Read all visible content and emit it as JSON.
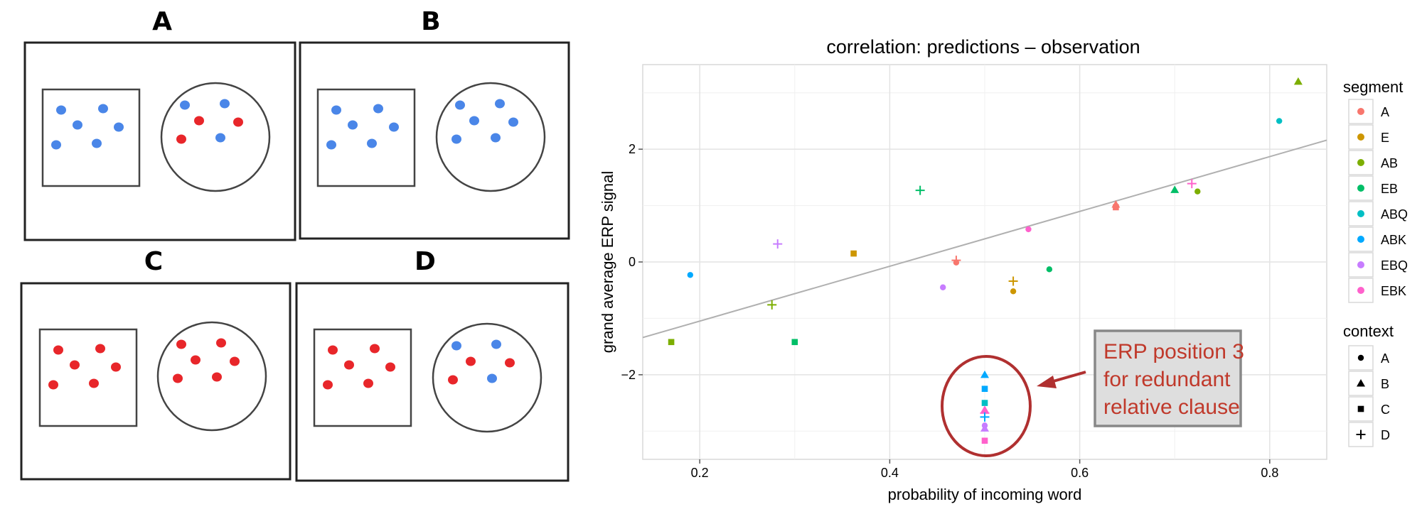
{
  "panels": [
    {
      "label": "A",
      "square_dots": [
        "blue",
        "blue",
        "blue",
        "blue",
        "blue",
        "blue"
      ],
      "circle_dots": [
        "blue",
        "blue",
        "red",
        "red",
        "red",
        "blue"
      ]
    },
    {
      "label": "B",
      "square_dots": [
        "blue",
        "blue",
        "blue",
        "blue",
        "blue",
        "blue"
      ],
      "circle_dots": [
        "blue",
        "blue",
        "blue",
        "blue",
        "blue",
        "blue"
      ]
    },
    {
      "label": "C",
      "square_dots": [
        "red",
        "red",
        "red",
        "red",
        "red",
        "red"
      ],
      "circle_dots": [
        "red",
        "red",
        "red",
        "red",
        "red",
        "red"
      ]
    },
    {
      "label": "D",
      "square_dots": [
        "red",
        "red",
        "red",
        "red",
        "red",
        "red"
      ],
      "circle_dots": [
        "blue",
        "blue",
        "red",
        "red",
        "red",
        "blue"
      ]
    }
  ],
  "dot_colors": {
    "blue": "#4a86e8",
    "red": "#e8262a"
  },
  "chart_data": {
    "type": "scatter",
    "title": "correlation: predictions – observation",
    "xlabel": "probability of incoming word",
    "ylabel": "grand average ERP signal",
    "xlim": [
      0.14,
      0.86
    ],
    "ylim": [
      -3.5,
      3.5
    ],
    "xticks": [
      0.2,
      0.4,
      0.6,
      0.8
    ],
    "xtick_labels": [
      "0.2",
      "0.4",
      "0.6",
      "0.8"
    ],
    "yticks": [
      -2,
      0,
      2
    ],
    "ytick_labels": [
      "−2",
      "0",
      "2"
    ],
    "grid": true,
    "regression_line": {
      "x": [
        0.14,
        0.86
      ],
      "y": [
        -1.34,
        2.16
      ],
      "color": "#b0b0b0"
    },
    "legend_segment": {
      "title": "segment",
      "items": [
        {
          "label": "A",
          "color": "#f8766d"
        },
        {
          "label": "E",
          "color": "#cd9600"
        },
        {
          "label": "AB",
          "color": "#7cae00"
        },
        {
          "label": "EB",
          "color": "#00be67"
        },
        {
          "label": "ABQ",
          "color": "#00bfc4"
        },
        {
          "label": "ABK",
          "color": "#00a9ff"
        },
        {
          "label": "EBQ",
          "color": "#c77cff"
        },
        {
          "label": "EBK",
          "color": "#ff61cc"
        }
      ]
    },
    "legend_context": {
      "title": "context",
      "items": [
        {
          "label": "A",
          "shape": "circle"
        },
        {
          "label": "B",
          "shape": "triangle"
        },
        {
          "label": "C",
          "shape": "square"
        },
        {
          "label": "D",
          "shape": "plus"
        }
      ]
    },
    "points": [
      {
        "x": 0.83,
        "y": 3.2,
        "segment": "AB",
        "context": "B"
      },
      {
        "x": 0.81,
        "y": 2.5,
        "segment": "ABQ",
        "context": "A"
      },
      {
        "x": 0.432,
        "y": 1.27,
        "segment": "EB",
        "context": "D"
      },
      {
        "x": 0.718,
        "y": 1.39,
        "segment": "EBK",
        "context": "D"
      },
      {
        "x": 0.7,
        "y": 1.28,
        "segment": "EB",
        "context": "B"
      },
      {
        "x": 0.724,
        "y": 1.25,
        "segment": "AB",
        "context": "A"
      },
      {
        "x": 0.638,
        "y": 1.02,
        "segment": "A",
        "context": "B"
      },
      {
        "x": 0.638,
        "y": 0.97,
        "segment": "A",
        "context": "C"
      },
      {
        "x": 0.546,
        "y": 0.58,
        "segment": "EBK",
        "context": "A"
      },
      {
        "x": 0.282,
        "y": 0.32,
        "segment": "EBQ",
        "context": "D"
      },
      {
        "x": 0.362,
        "y": 0.15,
        "segment": "E",
        "context": "C"
      },
      {
        "x": 0.47,
        "y": 0.03,
        "segment": "A",
        "context": "D"
      },
      {
        "x": 0.47,
        "y": -0.01,
        "segment": "A",
        "context": "A"
      },
      {
        "x": 0.19,
        "y": -0.23,
        "segment": "ABK",
        "context": "A"
      },
      {
        "x": 0.568,
        "y": -0.13,
        "segment": "EB",
        "context": "A"
      },
      {
        "x": 0.53,
        "y": -0.34,
        "segment": "E",
        "context": "D"
      },
      {
        "x": 0.53,
        "y": -0.52,
        "segment": "E",
        "context": "A"
      },
      {
        "x": 0.456,
        "y": -0.45,
        "segment": "EBQ",
        "context": "A"
      },
      {
        "x": 0.276,
        "y": -0.76,
        "segment": "AB",
        "context": "D"
      },
      {
        "x": 0.17,
        "y": -1.42,
        "segment": "AB",
        "context": "C"
      },
      {
        "x": 0.3,
        "y": -1.42,
        "segment": "EB",
        "context": "C"
      },
      {
        "x": 0.5,
        "y": -2.0,
        "segment": "ABK",
        "context": "B"
      },
      {
        "x": 0.5,
        "y": -2.25,
        "segment": "ABK",
        "context": "C"
      },
      {
        "x": 0.5,
        "y": -2.5,
        "segment": "ABQ",
        "context": "C"
      },
      {
        "x": 0.5,
        "y": -2.62,
        "segment": "EBK",
        "context": "B"
      },
      {
        "x": 0.5,
        "y": -2.68,
        "segment": "EBK",
        "context": "D"
      },
      {
        "x": 0.5,
        "y": -2.75,
        "segment": "ABK",
        "context": "D"
      },
      {
        "x": 0.5,
        "y": -2.9,
        "segment": "EBQ",
        "context": "A"
      },
      {
        "x": 0.5,
        "y": -2.95,
        "segment": "EBQ",
        "context": "B"
      },
      {
        "x": 0.5,
        "y": -3.17,
        "segment": "EBK",
        "context": "C"
      }
    ],
    "annotation": {
      "text_lines": [
        "ERP position 3",
        "for redundant",
        "relative clause"
      ],
      "text_color": "#c0392b",
      "box_fill": "#dedede",
      "box_border": "#888888",
      "arrow_color": "#b03030",
      "circle_color": "#b03030"
    }
  }
}
